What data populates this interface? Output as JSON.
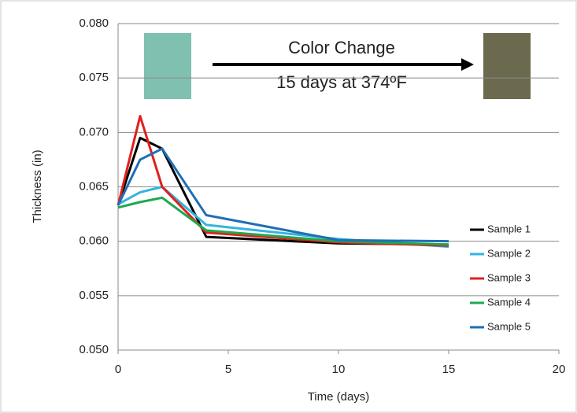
{
  "chart_data": {
    "type": "line",
    "x_label": "Time (days)",
    "y_label": "Thickness (in)",
    "annotations": [
      "Color Change",
      "15 days at 374ºF"
    ],
    "x": [
      0,
      1,
      2,
      4,
      10,
      15
    ],
    "series": [
      {
        "name": "Sample 1",
        "color": "#000000",
        "values": [
          0.0633,
          0.0695,
          0.0685,
          0.0604,
          0.0598,
          0.0597
        ]
      },
      {
        "name": "Sample 2",
        "color": "#33b4e0",
        "values": [
          0.0634,
          0.0645,
          0.065,
          0.0615,
          0.0602,
          0.0595
        ]
      },
      {
        "name": "Sample 3",
        "color": "#e0201c",
        "values": [
          0.0633,
          0.0715,
          0.065,
          0.0608,
          0.0599,
          0.0596
        ]
      },
      {
        "name": "Sample 4",
        "color": "#1fa84f",
        "values": [
          0.0631,
          0.0636,
          0.064,
          0.061,
          0.06,
          0.0597
        ]
      },
      {
        "name": "Sample 5",
        "color": "#1f6fb4",
        "values": [
          0.0633,
          0.0675,
          0.0685,
          0.0624,
          0.0601,
          0.06
        ]
      }
    ],
    "xlim": [
      0,
      20
    ],
    "xticks": [
      0,
      5,
      10,
      15,
      20
    ],
    "ylim": [
      0.05,
      0.08
    ],
    "yticks": [
      {
        "value": 0.05,
        "label": "0.050"
      },
      {
        "value": 0.055,
        "label": "0.055"
      },
      {
        "value": 0.06,
        "label": "0.060"
      },
      {
        "value": 0.065,
        "label": "0.065"
      },
      {
        "value": 0.07,
        "label": "0.070"
      },
      {
        "value": 0.075,
        "label": "0.075"
      },
      {
        "value": 0.08,
        "label": "0.080"
      }
    ],
    "grid": true,
    "legend": "right"
  }
}
